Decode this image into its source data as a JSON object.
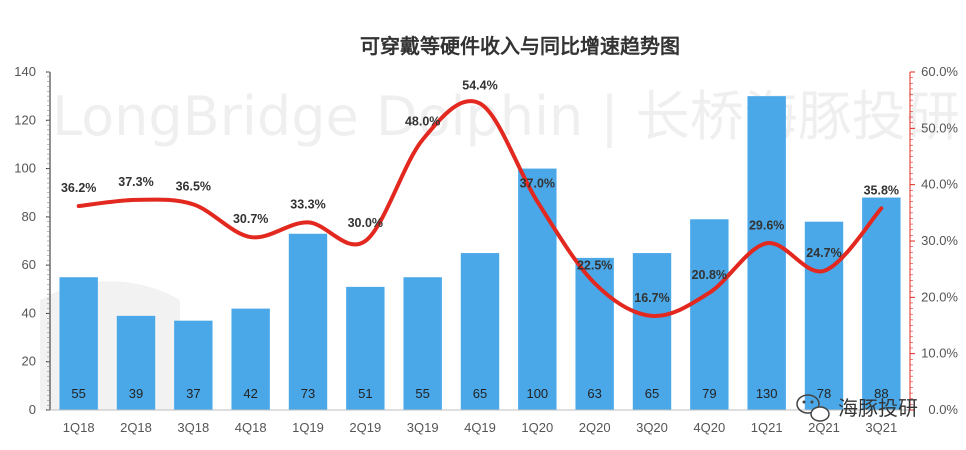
{
  "chart_data": {
    "type": "bar",
    "title": "可穿戴等硬件收入与同比增速趋势图",
    "categories": [
      "1Q18",
      "2Q18",
      "3Q18",
      "4Q18",
      "1Q19",
      "2Q19",
      "3Q19",
      "4Q19",
      "1Q20",
      "2Q20",
      "3Q20",
      "4Q20",
      "1Q21",
      "2Q21",
      "3Q21"
    ],
    "series": [
      {
        "type": "bar",
        "axis": "left",
        "color": "#4aa8e8",
        "values": [
          55,
          39,
          37,
          42,
          73,
          51,
          55,
          65,
          100,
          63,
          65,
          79,
          130,
          78,
          88
        ],
        "value_labels": [
          "55",
          "39",
          "37",
          "42",
          "73",
          "51",
          "55",
          "65",
          "100",
          "63",
          "65",
          "79",
          "130",
          "78",
          "88"
        ]
      },
      {
        "type": "line",
        "axis": "right",
        "color": "#e2281f",
        "values": [
          36.2,
          37.3,
          36.5,
          30.7,
          33.3,
          30.0,
          48.0,
          54.4,
          37.0,
          22.5,
          16.7,
          20.8,
          29.6,
          24.7,
          35.8
        ],
        "value_labels": [
          "36.2%",
          "37.3%",
          "36.5%",
          "30.7%",
          "33.3%",
          "30.0%",
          "48.0%",
          "54.4%",
          "37.0%",
          "22.5%",
          "16.7%",
          "20.8%",
          "29.6%",
          "24.7%",
          "35.8%"
        ]
      }
    ],
    "y_left": {
      "min": 0,
      "max": 140,
      "ticks": [
        "0",
        "20",
        "40",
        "60",
        "80",
        "100",
        "120",
        "140"
      ]
    },
    "y_right": {
      "min": 0,
      "max": 60,
      "ticks": [
        "0.0%",
        "10.0%",
        "20.0%",
        "30.0%",
        "40.0%",
        "50.0%",
        "60.0%"
      ]
    },
    "grid": false,
    "legend": "none"
  },
  "watermark": "LongBridge Dolphin | 长桥海豚投研",
  "badge": {
    "icon": "wechat-icon",
    "text": "海豚投研"
  }
}
